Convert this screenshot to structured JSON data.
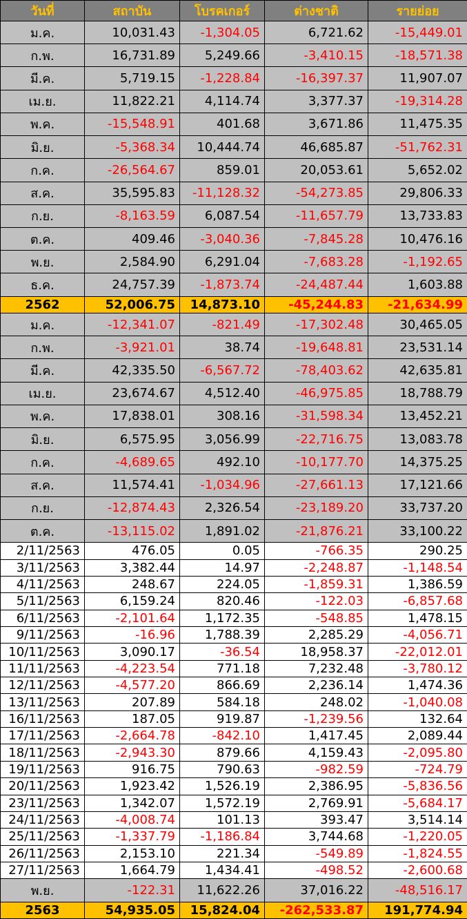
{
  "table": {
    "header": [
      "วันที่",
      "สถาบัน",
      "โบรคเกอร์",
      "ต่างชาติ",
      "รายย่อย"
    ],
    "rows": [
      [
        "ม.ค.",
        "10,031.43",
        "-1,304.05",
        "6,721.62",
        "-15,449.01"
      ],
      [
        "ก.พ.",
        "16,731.89",
        "5,249.66",
        "-3,410.15",
        "-18,571.38"
      ],
      [
        "มี.ค.",
        "5,719.15",
        "-1,228.84",
        "-16,397.37",
        "11,907.07"
      ],
      [
        "เม.ย.",
        "11,822.21",
        "4,114.74",
        "3,377.37",
        "-19,314.28"
      ],
      [
        "พ.ค.",
        "-15,548.91",
        "401.68",
        "3,671.86",
        "11,475.35"
      ],
      [
        "มิ.ย.",
        "-5,368.34",
        "10,444.74",
        "46,685.87",
        "-51,762.31"
      ],
      [
        "ก.ค.",
        "-26,564.67",
        "859.01",
        "20,053.61",
        "5,652.02"
      ],
      [
        "ส.ค.",
        "35,595.83",
        "-11,128.32",
        "-54,273.85",
        "29,806.33"
      ],
      [
        "ก.ย.",
        "-8,163.59",
        "6,087.54",
        "-11,657.79",
        "13,733.83"
      ],
      [
        "ต.ค.",
        "409.46",
        "-3,040.36",
        "-7,845.28",
        "10,476.16"
      ],
      [
        "พ.ย.",
        "2,584.90",
        "6,291.04",
        "-7,683.28",
        "-1,192.65"
      ],
      [
        "ธ.ค.",
        "24,757.39",
        "-1,873.74",
        "-24,487.44",
        "1,603.88"
      ],
      [
        "2562",
        "52,006.75",
        "14,873.10",
        "-45,244.83",
        "-21,634.99"
      ],
      [
        "ม.ค.",
        "-12,341.07",
        "-821.49",
        "-17,302.48",
        "30,465.05"
      ],
      [
        "ก.พ.",
        "-3,921.01",
        "38.74",
        "-19,648.81",
        "23,531.14"
      ],
      [
        "มี.ค.",
        "42,335.50",
        "-6,567.72",
        "-78,403.62",
        "42,635.81"
      ],
      [
        "เม.ย.",
        "23,674.67",
        "4,512.40",
        "-46,975.85",
        "18,788.79"
      ],
      [
        "พ.ค.",
        "17,838.01",
        "308.16",
        "-31,598.34",
        "13,452.21"
      ],
      [
        "มิ.ย.",
        "6,575.95",
        "3,056.99",
        "-22,716.75",
        "13,083.78"
      ],
      [
        "ก.ค.",
        "-4,689.65",
        "492.10",
        "-10,177.70",
        "14,375.25"
      ],
      [
        "ส.ค.",
        "11,574.41",
        "-1,034.96",
        "-27,661.13",
        "17,121.66"
      ],
      [
        "ก.ย.",
        "-12,874.43",
        "2,326.54",
        "-23,189.20",
        "33,737.20"
      ],
      [
        "ต.ค.",
        "-13,115.02",
        "1,891.02",
        "-21,876.21",
        "33,100.22"
      ],
      [
        "2/11/2563",
        "476.05",
        "0.05",
        "-766.35",
        "290.25"
      ],
      [
        "3/11/2563",
        "3,382.44",
        "14.97",
        "-2,248.87",
        "-1,148.54"
      ],
      [
        "4/11/2563",
        "248.67",
        "224.05",
        "-1,859.31",
        "1,386.59"
      ],
      [
        "5/11/2563",
        "6,159.24",
        "820.46",
        "-122.03",
        "-6,857.68"
      ],
      [
        "6/11/2563",
        "-2,101.64",
        "1,172.35",
        "-548.85",
        "1,478.15"
      ],
      [
        "9/11/2563",
        "-16.96",
        "1,788.39",
        "2,285.29",
        "-4,056.71"
      ],
      [
        "10/11/2563",
        "3,090.17",
        "-36.54",
        "18,958.37",
        "-22,012.01"
      ],
      [
        "11/11/2563",
        "-4,223.54",
        "771.18",
        "7,232.48",
        "-3,780.12"
      ],
      [
        "12/11/2563",
        "-4,577.20",
        "866.69",
        "2,236.14",
        "1,474.36"
      ],
      [
        "13/11/2563",
        "207.89",
        "584.18",
        "248.02",
        "-1,040.08"
      ],
      [
        "16/11/2563",
        "187.05",
        "919.87",
        "-1,239.56",
        "132.64"
      ],
      [
        "17/11/2563",
        "-2,664.78",
        "-842.10",
        "1,417.45",
        "2,089.44"
      ],
      [
        "18/11/2563",
        "-2,943.30",
        "879.66",
        "4,159.43",
        "-2,095.80"
      ],
      [
        "19/11/2563",
        "916.75",
        "790.63",
        "-982.59",
        "-724.79"
      ],
      [
        "20/11/2563",
        "1,923.42",
        "1,526.19",
        "2,386.95",
        "-5,836.56"
      ],
      [
        "23/11/2563",
        "1,342.07",
        "1,572.19",
        "2,769.91",
        "-5,684.17"
      ],
      [
        "24/11/2563",
        "-4,008.74",
        "101.13",
        "393.47",
        "3,514.14"
      ],
      [
        "25/11/2563",
        "-1,337.79",
        "-1,186.84",
        "3,744.68",
        "-1,220.05"
      ],
      [
        "26/11/2563",
        "2,153.10",
        "221.34",
        "-549.89",
        "-1,824.55"
      ],
      [
        "27/11/2563",
        "1,664.79",
        "1,434.41",
        "-498.52",
        "-2,600.68"
      ],
      [
        "พ.ย.",
        "-122.31",
        "11,622.26",
        "37,016.22",
        "-48,516.17"
      ],
      [
        "2563",
        "54,935.05",
        "15,824.04",
        "-262,533.87",
        "191,774.94"
      ]
    ]
  }
}
